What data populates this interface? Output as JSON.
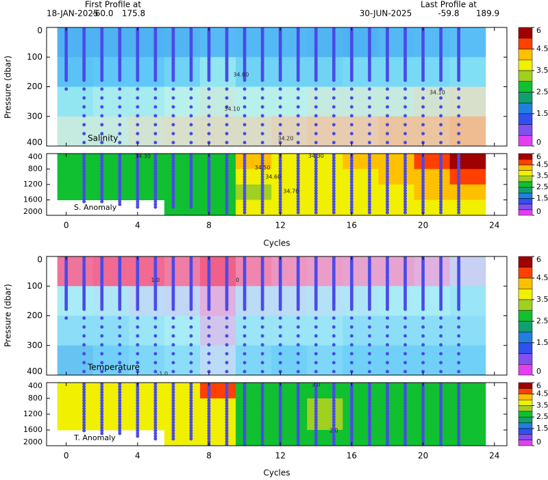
{
  "chart_data": {
    "type": "section",
    "header": {
      "left_title": "First Profile at",
      "left_date": "18-JAN-2025",
      "left_lat": "-60.0",
      "left_lon": "175.8",
      "right_title": "Last Profile at",
      "right_date": "30-JUN-2025",
      "right_lat": "-59.8",
      "right_lon": "189.9"
    },
    "xlabel": "Cycles",
    "ylabel": "Pressure (dbar)",
    "xlim": [
      -1.1,
      24.7
    ],
    "xticks": [
      0,
      4,
      8,
      12,
      16,
      20,
      24
    ],
    "x_edges": [
      -0.5,
      1.5,
      3.5,
      5.5,
      7.5,
      9.5,
      11.5,
      13.5,
      15.5,
      17.5,
      19.5,
      21.5,
      23.5
    ],
    "profiles": {
      "cycles": [
        0,
        1,
        2,
        3,
        4,
        5,
        6,
        7,
        8,
        9,
        10,
        11,
        12,
        13,
        14,
        15,
        16,
        17,
        18,
        19,
        20,
        21,
        22
      ],
      "max_pressure": [
        185,
        1680,
        1700,
        1750,
        1800,
        1830,
        1850,
        1850,
        2000,
        2000,
        2000,
        2000,
        2000,
        2000,
        2000,
        2000,
        2000,
        2000,
        2000,
        2000,
        2000,
        2000,
        2000
      ]
    },
    "colorbar": {
      "bounds": [
        0,
        0.5,
        1,
        1.5,
        2,
        2.5,
        3,
        3.5,
        4,
        4.5,
        5,
        6
      ],
      "colors": [
        "#e040f0",
        "#8050f0",
        "#3050f0",
        "#2080e0",
        "#10a070",
        "#10c030",
        "#a0d020",
        "#f0f000",
        "#ffc000",
        "#ff4000",
        "#a00000"
      ],
      "ticks": [
        0,
        1.5,
        2.5,
        3.5,
        4.5,
        6
      ]
    },
    "panels": [
      {
        "label": "Salinity",
        "ylim": [
          0,
          400
        ],
        "yticks": [
          0,
          100,
          200,
          300,
          400
        ],
        "y_inverted": true,
        "y_edges": [
          0,
          100,
          200,
          300,
          400
        ],
        "colorscale": {
          "stops": [
            33.9,
            34.0,
            34.05,
            34.1,
            34.15,
            34.2,
            34.25
          ],
          "colors": [
            "#48a8f0",
            "#60c8f8",
            "#88e4f4",
            "#b8f0ec",
            "#d8e0cc",
            "#e8ccb0",
            "#f0b888"
          ]
        },
        "values": [
          [
            33.93,
            33.93,
            33.93,
            33.94,
            33.96,
            33.95,
            33.95,
            33.94,
            33.93,
            33.95,
            33.96,
            33.97
          ],
          [
            33.98,
            34.0,
            34.0,
            34.02,
            34.06,
            34.02,
            34.02,
            34.02,
            34.03,
            34.03,
            34.03,
            34.04
          ],
          [
            34.06,
            34.08,
            34.08,
            34.1,
            34.12,
            34.1,
            34.1,
            34.12,
            34.12,
            34.12,
            34.14,
            34.15
          ],
          [
            34.12,
            34.12,
            34.14,
            34.15,
            34.16,
            34.16,
            34.18,
            34.2,
            34.2,
            34.22,
            34.22,
            34.24
          ]
        ],
        "annotations": [
          {
            "x": 9.8,
            "y": 160,
            "label": "34.00"
          },
          {
            "x": 9.3,
            "y": 275,
            "label": "34.10"
          },
          {
            "x": 20.8,
            "y": 220,
            "label": "34.10"
          },
          {
            "x": 12.3,
            "y": 375,
            "label": "34.20"
          }
        ]
      },
      {
        "label": "S. Anomaly",
        "ylim": [
          400,
          2000
        ],
        "yticks": [
          400,
          800,
          1200,
          1600,
          2000
        ],
        "y_inverted": true,
        "y_edges": [
          400,
          800,
          1200,
          1600,
          2000
        ],
        "values": [
          [
            2.7,
            2.7,
            2.7,
            2.7,
            3,
            4.2,
            3.8,
            3.8,
            4.2,
            4.5,
            5,
            5.2
          ],
          [
            2.7,
            2.7,
            2.7,
            2.7,
            2.7,
            3.7,
            3.7,
            3.8,
            4,
            4.2,
            4.5,
            4.7
          ],
          [
            2.7,
            2.7,
            2.7,
            2.7,
            2.7,
            3.5,
            3.7,
            3.7,
            3.8,
            4,
            4.2,
            4.2
          ],
          [
            null,
            null,
            null,
            2.7,
            2.7,
            3.7,
            3.7,
            3.7,
            3.8,
            3.8,
            3.8,
            3.8
          ]
        ],
        "annotations": [
          {
            "x": 4.3,
            "y": 470,
            "label": "34.30"
          },
          {
            "x": 14,
            "y": 460,
            "label": "34.30"
          },
          {
            "x": 11,
            "y": 760,
            "label": "34.50"
          },
          {
            "x": 11.6,
            "y": 1000,
            "label": "34.60"
          },
          {
            "x": 12.6,
            "y": 1380,
            "label": "34.70"
          }
        ]
      },
      {
        "label": "Temperature",
        "ylim": [
          0,
          400
        ],
        "yticks": [
          0,
          100,
          200,
          300,
          400
        ],
        "y_inverted": true,
        "y_edges": [
          0,
          100,
          200,
          300,
          400
        ],
        "colorscale": {
          "stops": [
            -1.6,
            -1.2,
            -0.8,
            -0.3,
            0,
            0.5,
            1.0
          ],
          "colors": [
            "#4c9ce0",
            "#70d0f8",
            "#a8ecf8",
            "#c8d0f4",
            "#e0b0e0",
            "#f090b8",
            "#f06088"
          ]
        },
        "values": [
          [
            0.8,
            0.9,
            0.9,
            0.7,
            1.0,
            0.6,
            0.4,
            0.3,
            0.2,
            0.2,
            0.0,
            -0.3
          ],
          [
            -0.8,
            -0.7,
            -0.5,
            -0.4,
            0.0,
            -0.5,
            -0.5,
            -0.6,
            -0.7,
            -0.8,
            -0.8,
            -0.9
          ],
          [
            -1.0,
            -1.0,
            -0.9,
            -0.8,
            -0.2,
            -0.9,
            -0.9,
            -0.9,
            -1.0,
            -1.0,
            -1.0,
            -1.0
          ],
          [
            -1.3,
            -1.2,
            -1.1,
            -1.0,
            -0.5,
            -1.1,
            -1.2,
            -1.1,
            -1.2,
            -1.2,
            -1.2,
            -1.2
          ]
        ],
        "annotations": [
          {
            "x": 5,
            "y": 80,
            "label": "1.0"
          },
          {
            "x": 9.6,
            "y": 80,
            "label": "0"
          },
          {
            "x": 5.4,
            "y": 395,
            "label": "-1.0"
          }
        ]
      },
      {
        "label": "T. Anomaly",
        "ylim": [
          400,
          2000
        ],
        "yticks": [
          400,
          800,
          1200,
          1600,
          2000
        ],
        "y_inverted": true,
        "y_edges": [
          400,
          800,
          1200,
          1600,
          2000
        ],
        "values": [
          [
            4,
            4,
            4,
            4,
            5,
            3,
            2.8,
            2.8,
            2.8,
            2.8,
            2.8,
            2.8
          ],
          [
            3.7,
            3.7,
            3.7,
            3.7,
            3.7,
            2.8,
            2.8,
            3.5,
            2.8,
            2.8,
            2.8,
            2.8
          ],
          [
            3.7,
            3.7,
            3.7,
            3.7,
            3.7,
            2.8,
            2.8,
            3.2,
            2.8,
            2.8,
            2.8,
            2.8
          ],
          [
            null,
            null,
            null,
            3.7,
            3.7,
            2.8,
            2.8,
            2.8,
            2.8,
            2.8,
            2.8,
            2.8
          ]
        ],
        "annotations": [
          {
            "x": 14,
            "y": 450,
            "label": "3.0"
          },
          {
            "x": 15,
            "y": 1620,
            "label": "2.0"
          }
        ]
      }
    ]
  }
}
